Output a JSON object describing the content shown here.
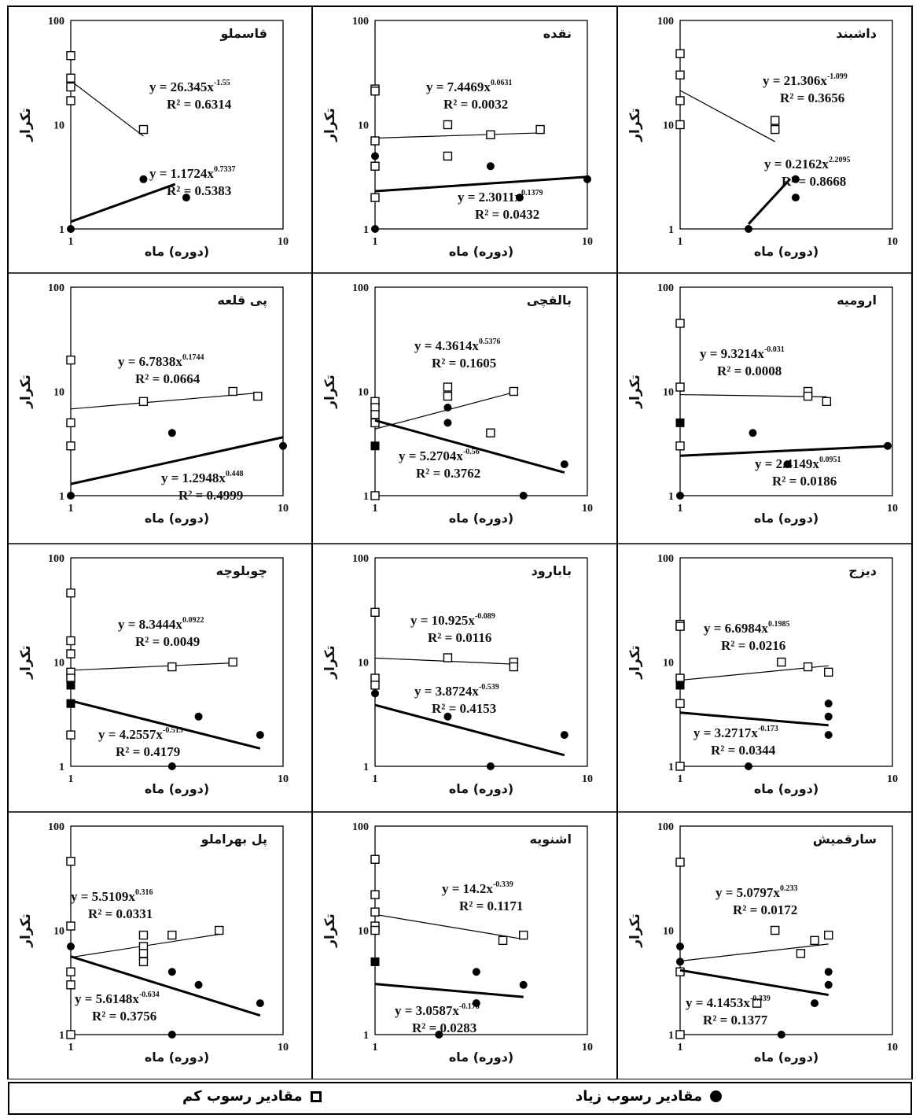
{
  "legend": {
    "low_label": "مقادیر رسوب کم",
    "high_label": "مقادیر رسوب زیاد"
  },
  "common_labels": {
    "ylabel": "تکرار",
    "xlabel": "(دوره) ماه"
  },
  "chart_data": [
    {
      "type": "scatter",
      "title": "قاسملو",
      "x_scale": "log",
      "y_scale": "log",
      "xlim": [
        1,
        10
      ],
      "ylim": [
        1,
        100
      ],
      "x_ticks": [
        "1",
        "10"
      ],
      "y_ticks": [
        "1",
        "10",
        "100"
      ],
      "series": [
        {
          "marker": "open-square",
          "x": [
            1,
            1,
            1,
            1,
            2.2
          ],
          "y": [
            46,
            28,
            23,
            17,
            9
          ],
          "fit": {
            "a": 26.345,
            "b": -1.55,
            "x_range": [
              1,
              2.2
            ],
            "equation": "y = 26.345x",
            "exponent": "-1.55",
            "r2": "R² = 0.6314"
          }
        },
        {
          "marker": "filled-circle",
          "x": [
            1,
            2.2,
            3.5
          ],
          "y": [
            1,
            3,
            2
          ],
          "fit": {
            "a": 1.1724,
            "b": 0.7337,
            "x_range": [
              1,
              3.1
            ],
            "equation": "y = 1.1724x",
            "exponent": "0.7337",
            "r2": "R² = 0.5383"
          }
        }
      ]
    },
    {
      "type": "scatter",
      "title": "نقده",
      "x_scale": "log",
      "y_scale": "log",
      "xlim": [
        1,
        10
      ],
      "ylim": [
        1,
        100
      ],
      "x_ticks": [
        "1",
        "10"
      ],
      "y_ticks": [
        "1",
        "10",
        "100"
      ],
      "series": [
        {
          "marker": "open-square",
          "x": [
            1,
            1,
            1,
            1,
            1,
            2.2,
            2.2,
            3.5,
            6
          ],
          "y": [
            22,
            21,
            7,
            4,
            2,
            10,
            5,
            8,
            9
          ],
          "fit": {
            "a": 7.4469,
            "b": 0.0631,
            "x_range": [
              1,
              6
            ],
            "equation": "y = 7.4469x",
            "exponent": "0.0631",
            "r2": "R² = 0.0032"
          }
        },
        {
          "marker": "filled-circle",
          "x": [
            1,
            1,
            3.5,
            4.8,
            10
          ],
          "y": [
            5,
            1,
            4,
            2,
            3
          ],
          "fit": {
            "a": 2.3011,
            "b": 0.1379,
            "x_range": [
              1,
              10
            ],
            "equation": "y = 2.3011x",
            "exponent": "0.1379",
            "r2": "R² = 0.0432"
          }
        }
      ]
    },
    {
      "type": "scatter",
      "title": "داشبند",
      "x_scale": "log",
      "y_scale": "log",
      "xlim": [
        1,
        10
      ],
      "ylim": [
        1,
        100
      ],
      "x_ticks": [
        "1",
        "10"
      ],
      "y_ticks": [
        "1",
        "10",
        "100"
      ],
      "series": [
        {
          "marker": "open-square",
          "x": [
            1,
            1,
            1,
            1,
            2.8,
            2.8
          ],
          "y": [
            48,
            30,
            17,
            10,
            11,
            9
          ],
          "fit": {
            "a": 21.306,
            "b": -1.099,
            "x_range": [
              1,
              2.8
            ],
            "equation": "y = 21.306x",
            "exponent": "-1.099",
            "r2": "R² = 0.3656"
          }
        },
        {
          "marker": "filled-circle",
          "x": [
            2.1,
            3.5,
            3.5
          ],
          "y": [
            1,
            3,
            2
          ],
          "fit": {
            "a": 0.2162,
            "b": 2.2095,
            "x_range": [
              2.1,
              3.3
            ],
            "equation": "y = 0.2162x",
            "exponent": "2.2095",
            "r2": "R² = 0.8668"
          }
        }
      ]
    },
    {
      "type": "scatter",
      "title": "پی قلعه",
      "x_scale": "log",
      "y_scale": "log",
      "xlim": [
        1,
        10
      ],
      "ylim": [
        1,
        100
      ],
      "x_ticks": [
        "1",
        "10"
      ],
      "y_ticks": [
        "1",
        "10",
        "100"
      ],
      "series": [
        {
          "marker": "open-square",
          "x": [
            1,
            1,
            1,
            2.2,
            5.8,
            7.6
          ],
          "y": [
            20,
            5,
            3,
            8,
            10,
            9
          ],
          "fit": {
            "a": 6.7838,
            "b": 0.1744,
            "x_range": [
              1,
              7.6
            ],
            "equation": "y = 6.7838x",
            "exponent": "0.1744",
            "r2": "R² = 0.0664"
          }
        },
        {
          "marker": "filled-circle",
          "x": [
            1,
            3,
            10
          ],
          "y": [
            1,
            4,
            3
          ],
          "fit": {
            "a": 1.2948,
            "b": 0.448,
            "x_range": [
              1,
              10
            ],
            "equation": "y = 1.2948x",
            "exponent": "0.448",
            "r2": "R² = 0.4999"
          }
        }
      ]
    },
    {
      "type": "scatter",
      "title": "بالقچی",
      "x_scale": "log",
      "y_scale": "log",
      "xlim": [
        1,
        10
      ],
      "ylim": [
        1,
        100
      ],
      "x_ticks": [
        "1",
        "10"
      ],
      "y_ticks": [
        "1",
        "10",
        "100"
      ],
      "series": [
        {
          "marker": "open-square",
          "x": [
            1,
            1,
            1,
            1,
            1,
            2.2,
            2.2,
            3.5,
            4.5
          ],
          "y": [
            8,
            7,
            6,
            5,
            1,
            11,
            9,
            4,
            10
          ],
          "fit": {
            "a": 4.3614,
            "b": 0.5376,
            "x_range": [
              1,
              4.5
            ],
            "equation": "y = 4.3614x",
            "exponent": "0.5376",
            "r2": "R² = 0.1605"
          }
        },
        {
          "marker": "filled-square",
          "x": [
            1
          ],
          "y": [
            3
          ]
        },
        {
          "marker": "filled-circle",
          "x": [
            2.2,
            2.2,
            5,
            7.8
          ],
          "y": [
            7,
            5,
            1,
            2
          ],
          "fit": {
            "a": 5.2704,
            "b": -0.56,
            "x_range": [
              1,
              7.8
            ],
            "equation": "y = 5.2704x",
            "exponent": "-0.56",
            "r2": "R² = 0.3762"
          }
        }
      ]
    },
    {
      "type": "scatter",
      "title": "ارومیه",
      "x_scale": "log",
      "y_scale": "log",
      "xlim": [
        1,
        10
      ],
      "ylim": [
        1,
        100
      ],
      "x_ticks": [
        "1",
        "10"
      ],
      "y_ticks": [
        "1",
        "10",
        "100"
      ],
      "series": [
        {
          "marker": "open-square",
          "x": [
            1,
            1,
            1,
            4,
            4,
            4.9
          ],
          "y": [
            45,
            11,
            3,
            10,
            9,
            8
          ],
          "fit": {
            "a": 9.3214,
            "b": -0.031,
            "x_range": [
              1,
              4.9
            ],
            "equation": "y = 9.3214x",
            "exponent": "-0.031",
            "r2": "R² = 0.0008"
          }
        },
        {
          "marker": "filled-square",
          "x": [
            1
          ],
          "y": [
            5
          ]
        },
        {
          "marker": "filled-circle",
          "x": [
            1,
            2.2,
            3.2,
            9.5
          ],
          "y": [
            1,
            4,
            2,
            3
          ],
          "fit": {
            "a": 2.4149,
            "b": 0.0951,
            "x_range": [
              1,
              9.5
            ],
            "equation": "y = 2.4149x",
            "exponent": "0.0951",
            "r2": "R² = 0.0186"
          }
        }
      ]
    },
    {
      "type": "scatter",
      "title": "چوبلوچه",
      "x_scale": "log",
      "y_scale": "log",
      "xlim": [
        1,
        10
      ],
      "ylim": [
        1,
        100
      ],
      "x_ticks": [
        "1",
        "10"
      ],
      "y_ticks": [
        "1",
        "10",
        "100"
      ],
      "series": [
        {
          "marker": "open-square",
          "x": [
            1,
            1,
            1,
            1,
            1,
            1,
            3,
            5.8
          ],
          "y": [
            46,
            16,
            12,
            8,
            7,
            2,
            9,
            10
          ],
          "fit": {
            "a": 8.3444,
            "b": 0.0922,
            "x_range": [
              1,
              5.8
            ],
            "equation": "y = 8.3444x",
            "exponent": "0.0922",
            "r2": "R² = 0.0049"
          }
        },
        {
          "marker": "filled-square",
          "x": [
            1,
            1
          ],
          "y": [
            6,
            4
          ]
        },
        {
          "marker": "filled-circle",
          "x": [
            3,
            4,
            7.8
          ],
          "y": [
            1,
            3,
            2
          ],
          "fit": {
            "a": 4.2557,
            "b": -0.513,
            "x_range": [
              1,
              7.8
            ],
            "equation": "y = 4.2557x",
            "exponent": "-0.513",
            "r2": "R² = 0.4179"
          }
        }
      ]
    },
    {
      "type": "scatter",
      "title": "بابارود",
      "x_scale": "log",
      "y_scale": "log",
      "xlim": [
        1,
        10
      ],
      "ylim": [
        1,
        100
      ],
      "x_ticks": [
        "1",
        "10"
      ],
      "y_ticks": [
        "1",
        "10",
        "100"
      ],
      "series": [
        {
          "marker": "open-square",
          "x": [
            1,
            1,
            1,
            2.2,
            4.5,
            4.5
          ],
          "y": [
            30,
            7,
            6,
            11,
            10,
            9
          ],
          "fit": {
            "a": 10.925,
            "b": -0.089,
            "x_range": [
              1,
              4.5
            ],
            "equation": "y = 10.925x",
            "exponent": "-0.089",
            "r2": "R² = 0.0116"
          }
        },
        {
          "marker": "filled-circle",
          "x": [
            1,
            2.2,
            3.5,
            7.8
          ],
          "y": [
            5,
            3,
            1,
            2
          ],
          "fit": {
            "a": 3.8724,
            "b": -0.539,
            "x_range": [
              1,
              7.8
            ],
            "equation": "y = 3.8724x",
            "exponent": "-0.539",
            "r2": "R² = 0.4153"
          }
        }
      ]
    },
    {
      "type": "scatter",
      "title": "دیزج",
      "x_scale": "log",
      "y_scale": "log",
      "xlim": [
        1,
        10
      ],
      "ylim": [
        1,
        100
      ],
      "x_ticks": [
        "1",
        "10"
      ],
      "y_ticks": [
        "1",
        "10",
        "100"
      ],
      "series": [
        {
          "marker": "open-square",
          "x": [
            1,
            1,
            1,
            1,
            1,
            3,
            4,
            5
          ],
          "y": [
            23,
            22,
            7,
            4,
            1,
            10,
            9,
            8
          ],
          "fit": {
            "a": 6.6984,
            "b": 0.1985,
            "x_range": [
              1,
              5
            ],
            "equation": "y = 6.6984x",
            "exponent": "0.1985",
            "r2": "R² = 0.0216"
          }
        },
        {
          "marker": "filled-square",
          "x": [
            1
          ],
          "y": [
            6
          ]
        },
        {
          "marker": "filled-circle",
          "x": [
            2.1,
            5,
            5,
            5
          ],
          "y": [
            1,
            4,
            3,
            2
          ],
          "fit": {
            "a": 3.2717,
            "b": -0.173,
            "x_range": [
              1,
              5
            ],
            "equation": "y = 3.2717x",
            "exponent": "-0.173",
            "r2": "R² = 0.0344"
          }
        }
      ]
    },
    {
      "type": "scatter",
      "title": "پل بهراملو",
      "x_scale": "log",
      "y_scale": "log",
      "xlim": [
        1,
        10
      ],
      "ylim": [
        1,
        100
      ],
      "x_ticks": [
        "1",
        "10"
      ],
      "y_ticks": [
        "1",
        "10",
        "100"
      ],
      "series": [
        {
          "marker": "open-square",
          "x": [
            1,
            1,
            1,
            1,
            1,
            2.2,
            2.2,
            2.2,
            2.2,
            3,
            5
          ],
          "y": [
            46,
            11,
            4,
            3,
            1,
            7,
            6,
            5,
            9,
            9,
            10
          ],
          "fit": {
            "a": 5.5109,
            "b": 0.316,
            "x_range": [
              1,
              5
            ],
            "equation": "y = 5.5109x",
            "exponent": "0.316",
            "r2": "R² = 0.0331"
          }
        },
        {
          "marker": "filled-circle",
          "x": [
            1,
            3,
            3,
            4,
            7.8
          ],
          "y": [
            7,
            4,
            1,
            3,
            2
          ],
          "fit": {
            "a": 5.6148,
            "b": -0.634,
            "x_range": [
              1,
              7.8
            ],
            "equation": "y = 5.6148x",
            "exponent": "-0.634",
            "r2": "R² = 0.3756"
          }
        }
      ]
    },
    {
      "type": "scatter",
      "title": "اشنویه",
      "x_scale": "log",
      "y_scale": "log",
      "xlim": [
        1,
        10
      ],
      "ylim": [
        1,
        100
      ],
      "x_ticks": [
        "1",
        "10"
      ],
      "y_ticks": [
        "1",
        "10",
        "100"
      ],
      "series": [
        {
          "marker": "open-square",
          "x": [
            1,
            1,
            1,
            1,
            1,
            4,
            5
          ],
          "y": [
            48,
            22,
            15,
            11,
            10,
            8,
            9
          ],
          "fit": {
            "a": 14.2,
            "b": -0.339,
            "x_range": [
              1,
              5
            ],
            "equation": "y = 14.2x",
            "exponent": "-0.339",
            "r2": "R² = 0.1171"
          }
        },
        {
          "marker": "filled-square",
          "x": [
            1
          ],
          "y": [
            5
          ]
        },
        {
          "marker": "filled-circle",
          "x": [
            2,
            3,
            3,
            5
          ],
          "y": [
            1,
            4,
            2,
            3
          ],
          "fit": {
            "a": 3.0587,
            "b": -0.178,
            "x_range": [
              1,
              5
            ],
            "equation": "y = 3.0587x",
            "exponent": "-0.178",
            "r2": "R² = 0.0283"
          }
        }
      ]
    },
    {
      "type": "scatter",
      "title": "سارقمیش",
      "x_scale": "log",
      "y_scale": "log",
      "xlim": [
        1,
        10
      ],
      "ylim": [
        1,
        100
      ],
      "x_ticks": [
        "1",
        "10"
      ],
      "y_ticks": [
        "1",
        "10",
        "100"
      ],
      "series": [
        {
          "marker": "open-square",
          "x": [
            1,
            1,
            1,
            2.8,
            3.7,
            4.3,
            5,
            2.3
          ],
          "y": [
            45,
            4,
            1,
            10,
            6,
            8,
            9,
            2
          ],
          "fit": {
            "a": 5.0797,
            "b": 0.233,
            "x_range": [
              1,
              5
            ],
            "equation": "y = 5.0797x",
            "exponent": "0.233",
            "r2": "R² = 0.0172"
          }
        },
        {
          "marker": "filled-circle",
          "x": [
            1,
            1,
            3,
            4.3,
            5,
            5
          ],
          "y": [
            7,
            5,
            1,
            2,
            4,
            3
          ],
          "fit": {
            "a": 4.1453,
            "b": -0.339,
            "x_range": [
              1,
              5
            ],
            "equation": "y = 4.1453x",
            "exponent": "-0.339",
            "r2": "R² = 0.1377"
          }
        }
      ]
    }
  ]
}
